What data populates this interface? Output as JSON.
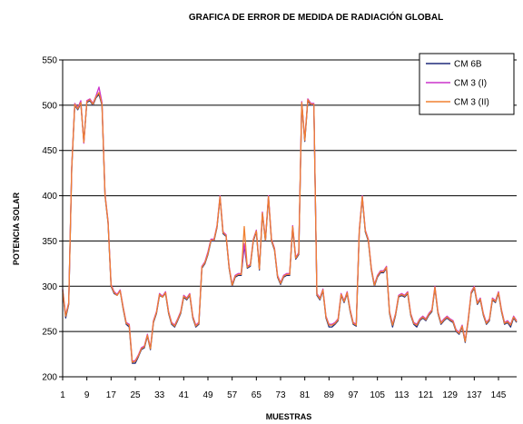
{
  "chart_data": {
    "type": "line",
    "title": "GRAFICA DE ERROR DE MEDIDA DE RADIACIÓN GLOBAL",
    "xlabel": "MUESTRAS",
    "ylabel": "POTENCIA SOLAR",
    "ylim": [
      200,
      550
    ],
    "yticks": [
      200,
      250,
      300,
      350,
      400,
      450,
      500,
      550
    ],
    "xlim": [
      1,
      151
    ],
    "xticks": [
      1,
      9,
      17,
      25,
      33,
      41,
      49,
      57,
      65,
      73,
      81,
      89,
      97,
      105,
      113,
      121,
      129,
      137,
      145
    ],
    "grid": "horizontal",
    "legend_position": "top-right",
    "x": [
      1,
      2,
      3,
      4,
      5,
      6,
      7,
      8,
      9,
      10,
      11,
      12,
      13,
      14,
      15,
      16,
      17,
      18,
      19,
      20,
      21,
      22,
      23,
      24,
      25,
      26,
      27,
      28,
      29,
      30,
      31,
      32,
      33,
      34,
      35,
      36,
      37,
      38,
      39,
      40,
      41,
      42,
      43,
      44,
      45,
      46,
      47,
      48,
      49,
      50,
      51,
      52,
      53,
      54,
      55,
      56,
      57,
      58,
      59,
      60,
      61,
      62,
      63,
      64,
      65,
      66,
      67,
      68,
      69,
      70,
      71,
      72,
      73,
      74,
      75,
      76,
      77,
      78,
      79,
      80,
      81,
      82,
      83,
      84,
      85,
      86,
      87,
      88,
      89,
      90,
      91,
      92,
      93,
      94,
      95,
      96,
      97,
      98,
      99,
      100,
      101,
      102,
      103,
      104,
      105,
      106,
      107,
      108,
      109,
      110,
      111,
      112,
      113,
      114,
      115,
      116,
      117,
      118,
      119,
      120,
      121,
      122,
      123,
      124,
      125,
      126,
      127,
      128,
      129,
      130,
      131,
      132,
      133,
      134,
      135,
      136,
      137,
      138,
      139,
      140,
      141,
      142,
      143,
      144,
      145,
      146,
      147,
      148,
      149,
      150,
      151
    ],
    "series": [
      {
        "name": "CM 6B",
        "color": "#1f2a7a",
        "values": [
          295,
          265,
          280,
          430,
          500,
          495,
          502,
          460,
          503,
          505,
          500,
          508,
          512,
          500,
          400,
          370,
          300,
          292,
          290,
          295,
          275,
          258,
          255,
          215,
          215,
          222,
          230,
          232,
          245,
          230,
          260,
          270,
          290,
          288,
          292,
          270,
          258,
          255,
          262,
          270,
          288,
          285,
          290,
          265,
          255,
          258,
          320,
          325,
          335,
          350,
          350,
          365,
          398,
          358,
          355,
          320,
          300,
          310,
          312,
          312,
          345,
          320,
          322,
          350,
          360,
          318,
          380,
          350,
          398,
          350,
          340,
          310,
          302,
          310,
          312,
          312,
          365,
          330,
          335,
          502,
          460,
          505,
          500,
          500,
          290,
          285,
          295,
          265,
          255,
          255,
          258,
          262,
          290,
          282,
          292,
          272,
          258,
          256,
          360,
          398,
          360,
          350,
          318,
          300,
          310,
          315,
          315,
          320,
          270,
          255,
          268,
          288,
          290,
          288,
          292,
          268,
          258,
          255,
          262,
          265,
          262,
          268,
          272,
          298,
          270,
          258,
          262,
          265,
          262,
          260,
          250,
          247,
          255,
          238,
          262,
          292,
          298,
          280,
          285,
          268,
          258,
          262,
          285,
          282,
          292,
          272,
          258,
          260,
          255,
          265,
          260
        ]
      },
      {
        "name": "CM 3 (I)",
        "color": "#cc33cc",
        "values": [
          297,
          268,
          282,
          432,
          502,
          497,
          505,
          458,
          505,
          507,
          502,
          510,
          520,
          503,
          402,
          372,
          302,
          294,
          291,
          296,
          277,
          260,
          258,
          217,
          218,
          224,
          232,
          234,
          247,
          232,
          262,
          272,
          292,
          289,
          294,
          272,
          260,
          257,
          264,
          272,
          290,
          287,
          292,
          267,
          257,
          260,
          322,
          327,
          338,
          352,
          352,
          367,
          400,
          360,
          357,
          322,
          302,
          312,
          314,
          314,
          347,
          322,
          324,
          352,
          362,
          320,
          382,
          352,
          400,
          352,
          342,
          312,
          304,
          312,
          314,
          314,
          367,
          332,
          337,
          504,
          462,
          507,
          502,
          502,
          292,
          287,
          297,
          267,
          258,
          258,
          260,
          264,
          292,
          284,
          294,
          274,
          260,
          258,
          362,
          400,
          362,
          352,
          320,
          302,
          312,
          317,
          317,
          322,
          272,
          258,
          270,
          290,
          292,
          290,
          294,
          270,
          260,
          258,
          264,
          267,
          264,
          270,
          274,
          300,
          272,
          260,
          264,
          267,
          264,
          262,
          252,
          249,
          257,
          240,
          264,
          294,
          300,
          282,
          287,
          270,
          260,
          264,
          287,
          284,
          294,
          274,
          260,
          262,
          258,
          267,
          262
        ]
      },
      {
        "name": "CM 3 (II)",
        "color": "#f08030",
        "values": [
          296,
          267,
          281,
          431,
          501,
          496,
          503,
          459,
          504,
          506,
          501,
          509,
          514,
          501,
          401,
          371,
          301,
          293,
          290,
          295,
          276,
          259,
          257,
          216,
          217,
          223,
          231,
          233,
          246,
          231,
          261,
          271,
          291,
          288,
          293,
          271,
          259,
          256,
          263,
          271,
          289,
          286,
          291,
          266,
          256,
          259,
          321,
          326,
          336,
          351,
          351,
          366,
          399,
          359,
          356,
          321,
          301,
          311,
          313,
          313,
          366,
          321,
          323,
          351,
          361,
          319,
          381,
          351,
          399,
          351,
          341,
          311,
          303,
          311,
          313,
          313,
          366,
          331,
          336,
          503,
          461,
          506,
          501,
          501,
          291,
          286,
          296,
          266,
          257,
          257,
          259,
          263,
          291,
          283,
          293,
          273,
          259,
          257,
          361,
          399,
          361,
          351,
          319,
          301,
          311,
          316,
          316,
          321,
          271,
          257,
          269,
          289,
          291,
          289,
          293,
          269,
          259,
          257,
          263,
          266,
          263,
          269,
          273,
          299,
          271,
          259,
          263,
          266,
          263,
          261,
          251,
          248,
          256,
          239,
          263,
          293,
          299,
          281,
          286,
          269,
          259,
          263,
          286,
          283,
          293,
          273,
          259,
          261,
          257,
          266,
          261
        ]
      }
    ]
  }
}
